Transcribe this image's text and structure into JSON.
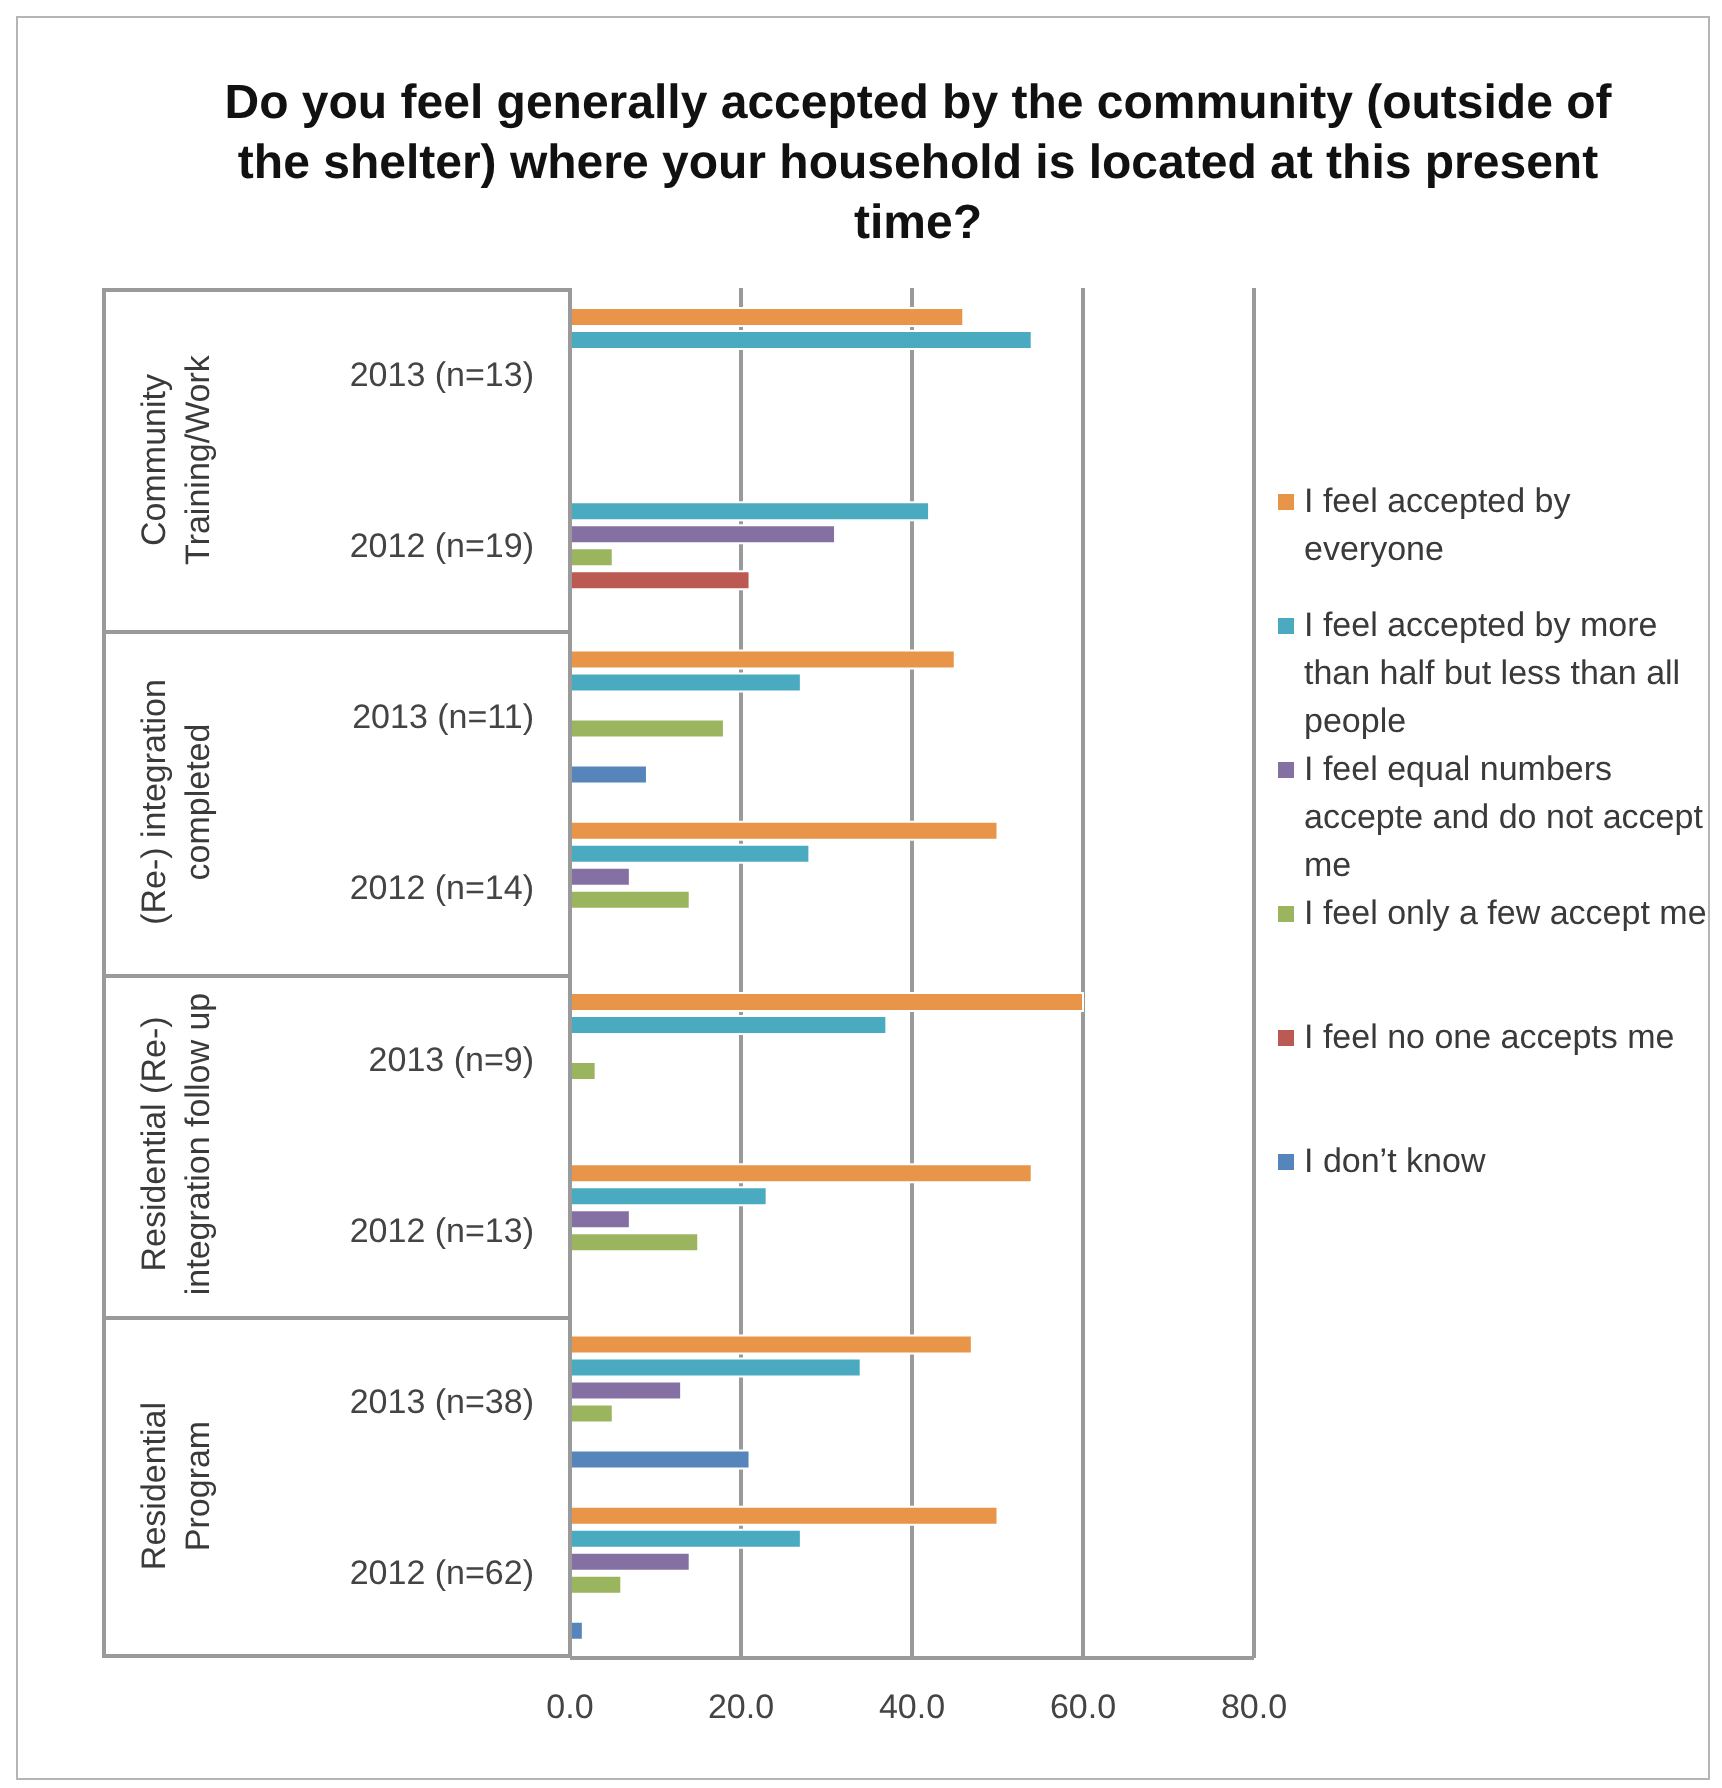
{
  "chart_data": {
    "type": "bar",
    "orientation": "horizontal",
    "title": "Do you feel generally accepted by the community (outside of the shelter) where your household is located at this present time?",
    "categories": [
      "2013 (n=13)",
      "2012 (n=19)",
      "2013 (n=11)",
      "2012 (n=14)",
      "2013 (n=9)",
      "2012 (n=13)",
      "2013 (n=38)",
      "2012 (n=62)"
    ],
    "annotations": [
      "Community Training/Work",
      "(Re-) integration completed",
      "Residential (Re-) integration follow up",
      "Residential Program"
    ],
    "series": [
      {
        "name": "I feel accepted by everyone",
        "color": "#e8954a",
        "values": [
          46,
          null,
          45,
          50,
          60,
          54,
          47,
          50
        ]
      },
      {
        "name": "I feel accepted by more than half but less than all people",
        "color": "#4aaabf",
        "values": [
          54,
          42,
          27,
          28,
          37,
          23,
          34,
          27
        ]
      },
      {
        "name": "I feel  equal numbers accepte and do not accept me",
        "color": "#8470a2",
        "values": [
          null,
          31,
          null,
          7,
          null,
          7,
          13,
          14
        ]
      },
      {
        "name": "I feel only a few accept me",
        "color": "#9bb45e",
        "values": [
          null,
          5,
          18,
          14,
          3,
          15,
          5,
          6
        ]
      },
      {
        "name": "I feel no one accepts me",
        "color": "#bb5a52",
        "values": [
          null,
          21,
          null,
          null,
          null,
          null,
          null,
          null
        ]
      },
      {
        "name": "I don’t know",
        "color": "#5585bb",
        "values": [
          null,
          null,
          9,
          null,
          null,
          null,
          21,
          1.5
        ]
      }
    ],
    "xlim": [
      0,
      80
    ],
    "xticks": [
      {
        "value": 0,
        "label": "0.0"
      },
      {
        "value": 20,
        "label": "20.0"
      },
      {
        "value": 40,
        "label": "40.0"
      },
      {
        "value": 60,
        "label": "60.0"
      },
      {
        "value": 80,
        "label": "80.0"
      }
    ],
    "grid": "x",
    "legend": "right"
  }
}
